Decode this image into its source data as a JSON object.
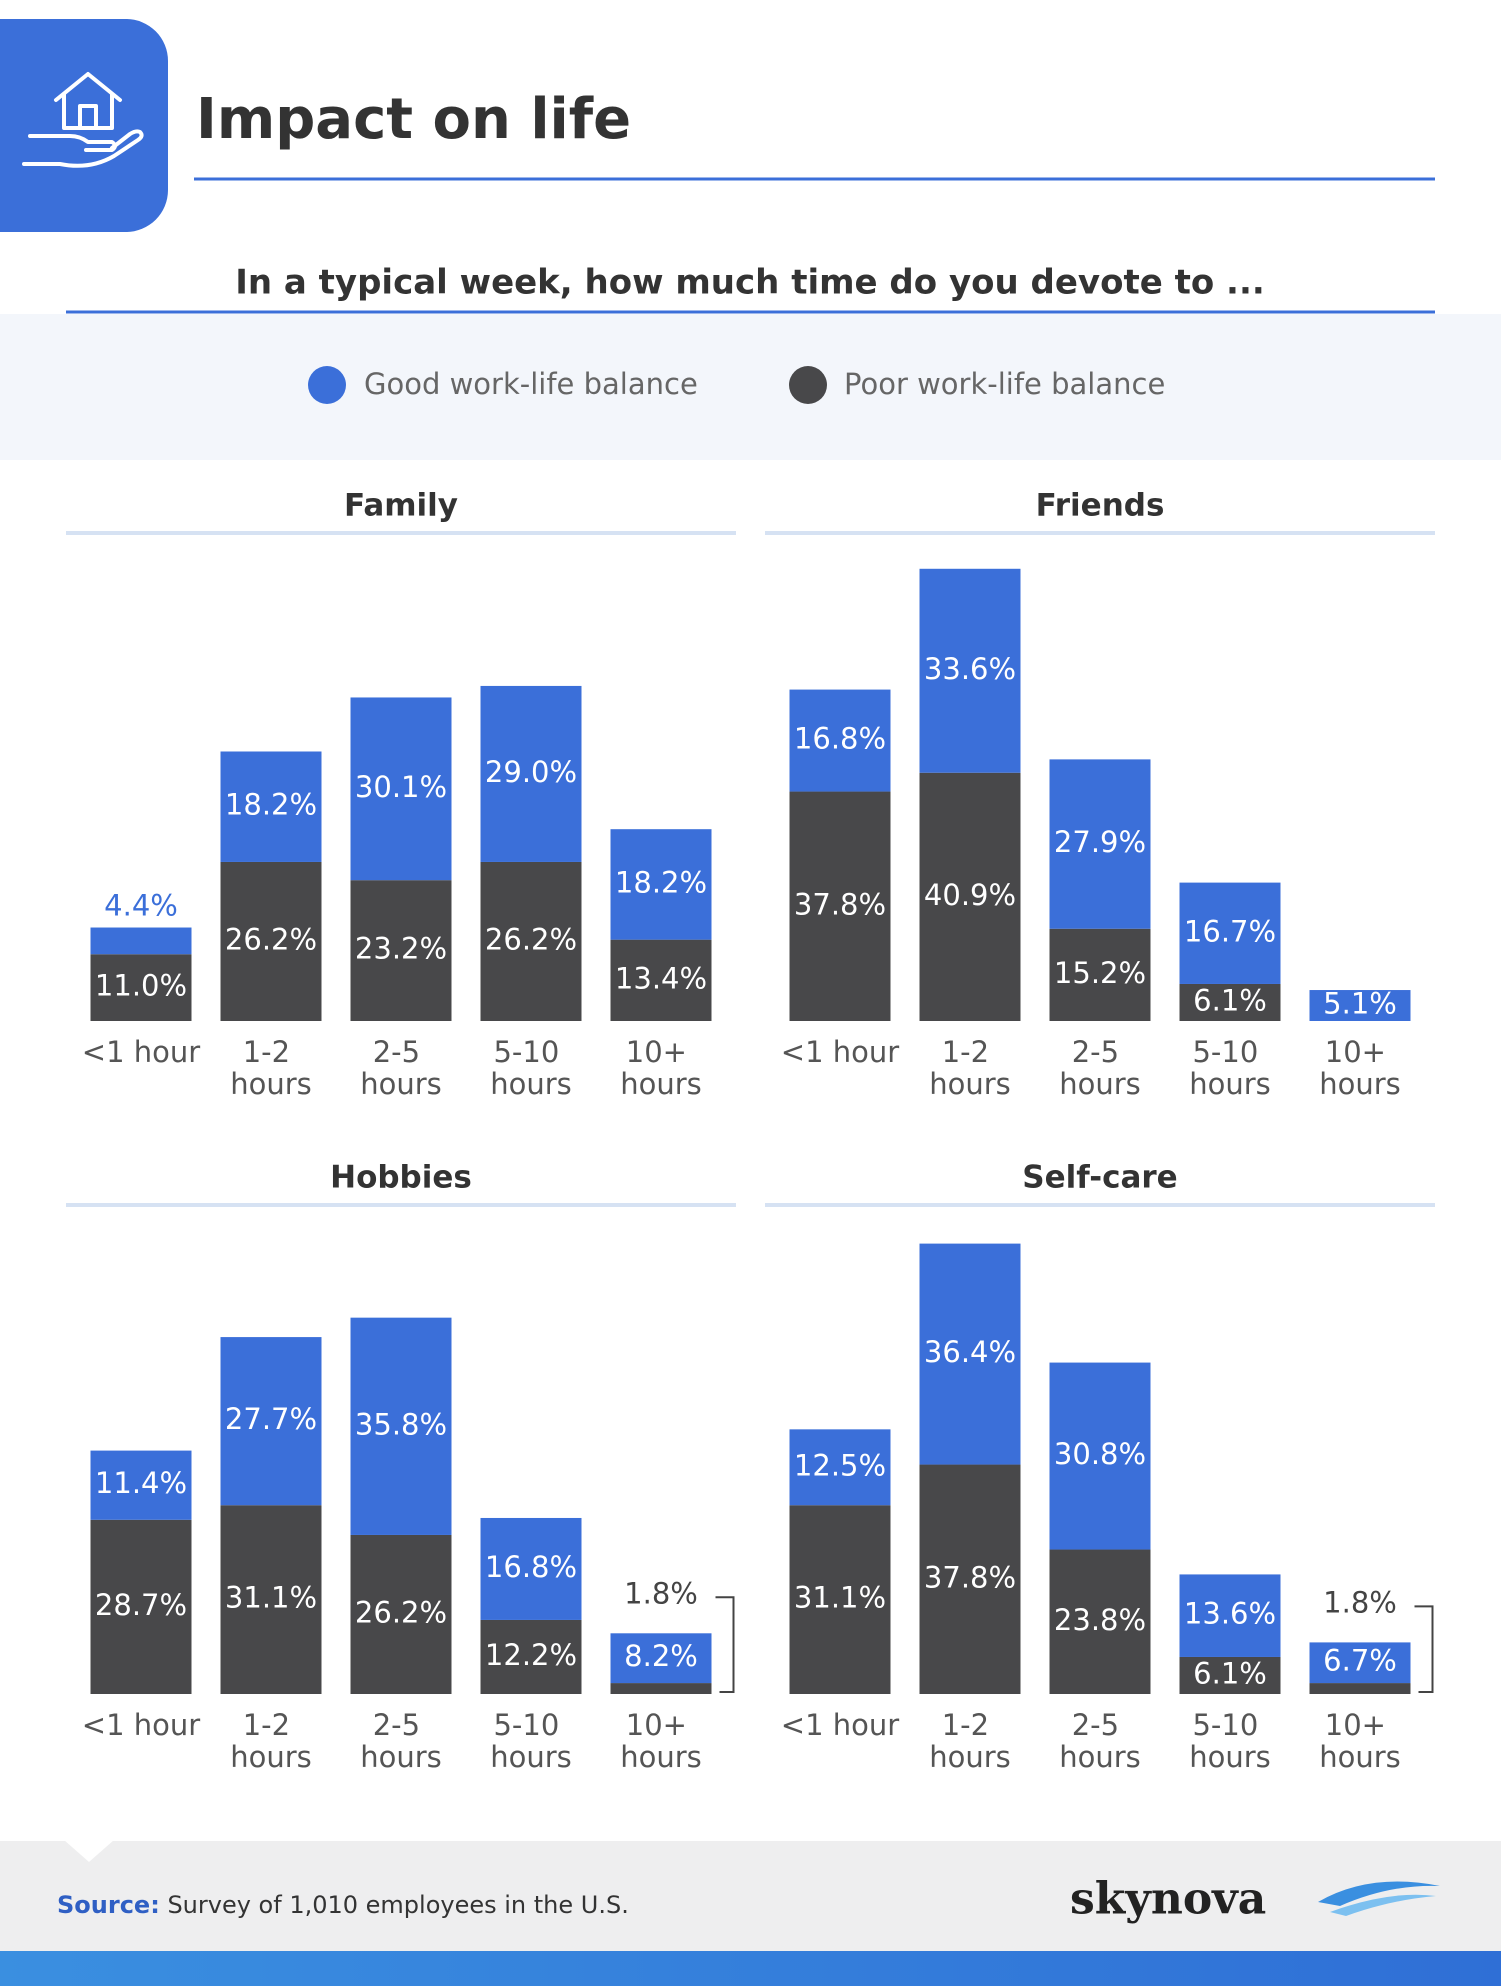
{
  "header": {
    "title": "Impact on life",
    "subtitle": "In a typical week, how much time do you devote to ..."
  },
  "footer": {
    "source_label": "Source:",
    "source_text": "Survey of 1,010 employees in the U.S.",
    "brand": "skynova"
  },
  "chart_data": [
    {
      "type": "bar",
      "stacked": true,
      "title": "Family",
      "categories": [
        "<1 hour",
        "1-2 hours",
        "2-5 hours",
        "5-10 hours",
        "10+ hours"
      ],
      "series": [
        {
          "name": "Poor work-life balance",
          "color": "#48484a",
          "values": [
            11.0,
            26.2,
            23.2,
            26.2,
            13.4
          ],
          "value_labels": [
            "11.0%",
            "26.2%",
            "23.2%",
            "26.2%",
            "13.4%"
          ]
        },
        {
          "name": "Good work-life balance",
          "color": "#3b6fd9",
          "values": [
            4.4,
            18.2,
            30.1,
            29.0,
            18.2
          ],
          "value_labels": [
            "4.4%",
            "18.2%",
            "30.1%",
            "29.0%",
            "18.2%"
          ]
        }
      ]
    },
    {
      "type": "bar",
      "stacked": true,
      "title": "Friends",
      "categories": [
        "<1 hour",
        "1-2 hours",
        "2-5 hours",
        "5-10 hours",
        "10+ hours"
      ],
      "series": [
        {
          "values": [
            37.8,
            40.9,
            15.2,
            6.1,
            0
          ],
          "value_labels": [
            "37.8%",
            "40.9%",
            "15.2%",
            "6.1%",
            null
          ]
        },
        {
          "values": [
            16.8,
            33.6,
            27.9,
            16.7,
            5.1
          ],
          "value_labels": [
            "16.8%",
            "33.6%",
            "27.9%",
            "16.7%",
            "5.1%"
          ]
        }
      ]
    },
    {
      "type": "bar",
      "stacked": true,
      "title": "Hobbies",
      "categories": [
        "<1 hour",
        "1-2 hours",
        "2-5 hours",
        "5-10 hours",
        "10+ hours"
      ],
      "series": [
        {
          "values": [
            28.7,
            31.1,
            26.2,
            12.2,
            1.8
          ],
          "value_labels": [
            "28.7%",
            "31.1%",
            "26.2%",
            "12.2%",
            "1.8%"
          ]
        },
        {
          "values": [
            11.4,
            27.7,
            35.8,
            16.8,
            8.2
          ],
          "value_labels": [
            "11.4%",
            "27.7%",
            "35.8%",
            "16.8%",
            "8.2%"
          ]
        }
      ]
    },
    {
      "type": "bar",
      "stacked": true,
      "title": "Self-care",
      "categories": [
        "<1 hour",
        "1-2 hours",
        "2-5 hours",
        "5-10 hours",
        "10+ hours"
      ],
      "series": [
        {
          "values": [
            31.1,
            37.8,
            23.8,
            6.1,
            1.8
          ],
          "value_labels": [
            "31.1%",
            "37.8%",
            "23.8%",
            "6.1%",
            "1.8%"
          ]
        },
        {
          "values": [
            12.5,
            36.4,
            30.8,
            13.6,
            6.7
          ],
          "value_labels": [
            "12.5%",
            "36.4%",
            "30.8%",
            "13.6%",
            "6.7%"
          ]
        }
      ]
    }
  ]
}
